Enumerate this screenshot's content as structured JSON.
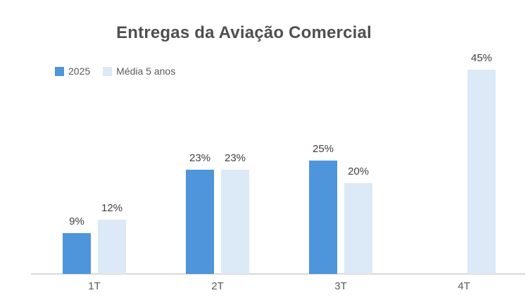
{
  "colors": {
    "series1": "#4E95DB",
    "series2": "#DCE9F6",
    "title": "#4F4F4F",
    "data_label": "#404040",
    "axis_label": "#595959",
    "legend_text": "#595959",
    "axis_line": "#D9D9D9",
    "background": "#FFFFFF"
  },
  "chart_data": {
    "type": "bar",
    "title": "Entregas da Aviação Comercial",
    "categories": [
      "1T",
      "2T",
      "3T",
      "4T"
    ],
    "series": [
      {
        "name": "2025",
        "color_key": "series1",
        "values": [
          9,
          23,
          25,
          null
        ]
      },
      {
        "name": "Média 5 anos",
        "color_key": "series2",
        "values": [
          12,
          23,
          20,
          45
        ]
      }
    ],
    "value_suffix": "%",
    "xlabel": "",
    "ylabel": "",
    "ylim": [
      0,
      48
    ],
    "grid": false,
    "data_labels": true,
    "legend_position": "top-left"
  }
}
